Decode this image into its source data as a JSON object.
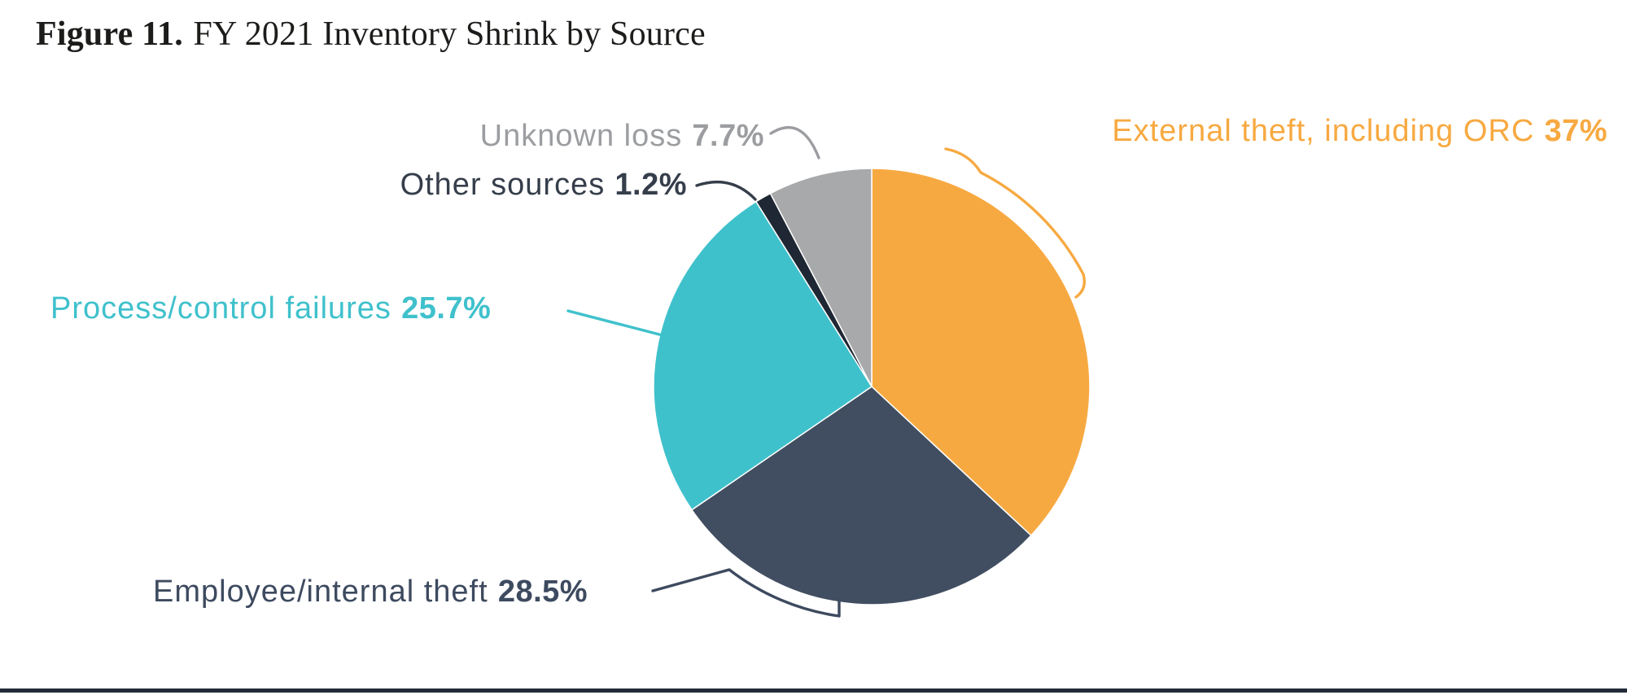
{
  "figure": {
    "title_prefix": "Figure 11.",
    "title_text": "FY 2021 Inventory Shrink by Source"
  },
  "chart_data": {
    "type": "pie",
    "title": "FY 2021 Inventory Shrink by Source",
    "start_angle_deg": -90,
    "direction": "clockwise",
    "grid": false,
    "legend_position": "labels-around-pie",
    "slices": [
      {
        "id": "external-theft",
        "label": "External theft, including ORC",
        "value": 37,
        "display": "37%",
        "color": "#F7A941",
        "label_color": "#F7A941"
      },
      {
        "id": "employee-internal-theft",
        "label": "Employee/internal theft",
        "value": 28.5,
        "display": "28.5%",
        "color": "#414E61",
        "label_color": "#3D4A5F"
      },
      {
        "id": "process-control-failures",
        "label": "Process/control failures",
        "value": 25.7,
        "display": "25.7%",
        "color": "#3FC1CC",
        "label_color": "#3FC1CC"
      },
      {
        "id": "other-sources",
        "label": "Other sources",
        "value": 1.2,
        "display": "1.2%",
        "color": "#1E2733",
        "label_color": "#363E4B"
      },
      {
        "id": "unknown-loss",
        "label": "Unknown loss",
        "value": 7.7,
        "display": "7.7%",
        "color": "#A8A9AB",
        "label_color": "#9B9DA0"
      }
    ]
  },
  "footer": {
    "rule_color": "#232B39"
  }
}
